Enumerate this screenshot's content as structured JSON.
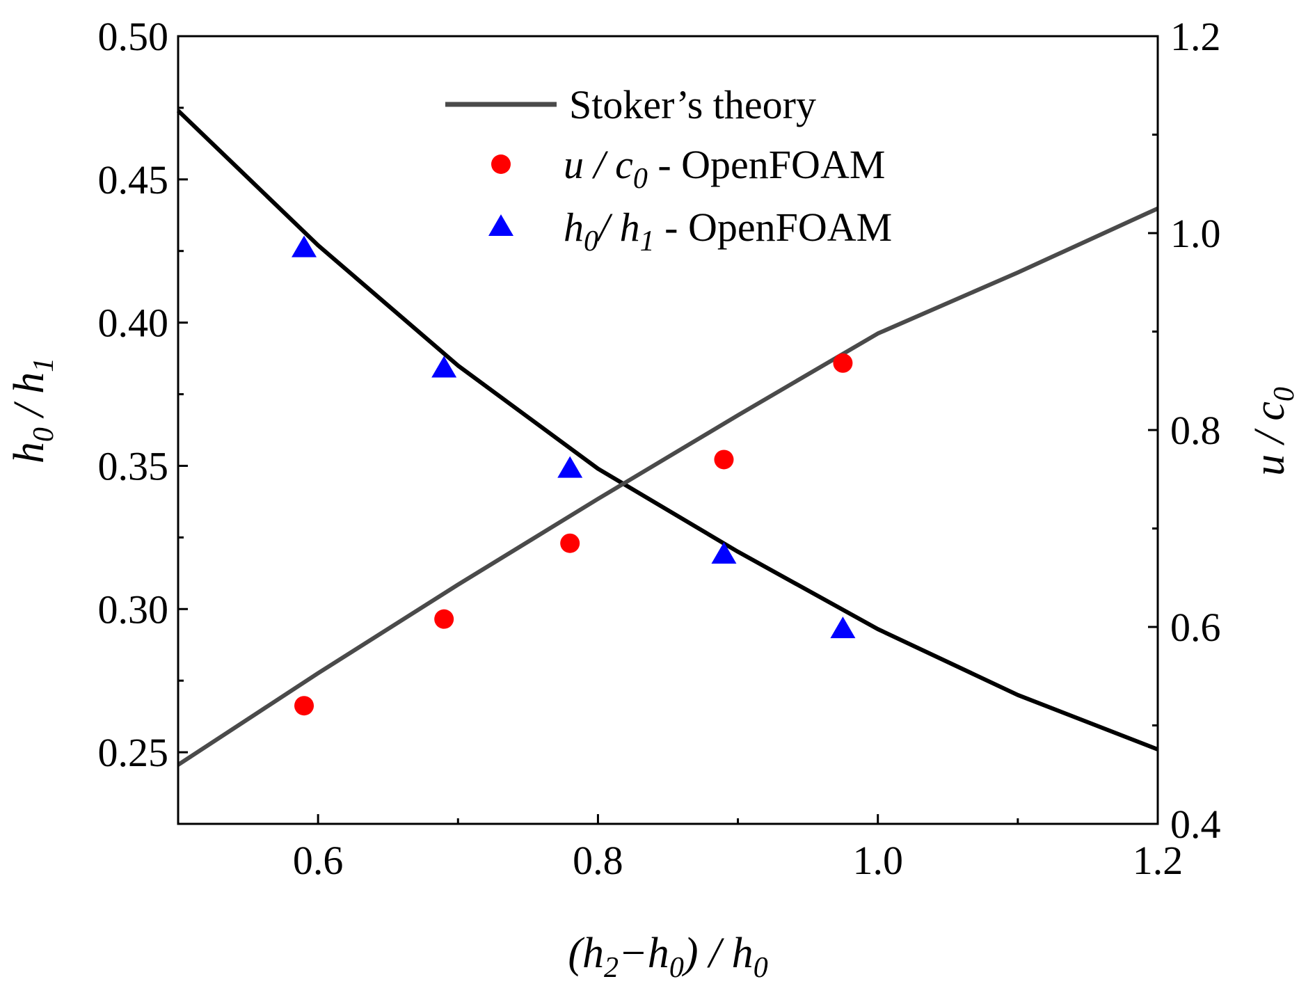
{
  "chart_data": {
    "type": "line",
    "title": "",
    "xlabel": "(h2−h0) / h0",
    "ylabel_left": "h0 / h1",
    "ylabel_right": "u / c0",
    "xlim": [
      0.5,
      1.2
    ],
    "ylim_left": [
      0.225,
      0.5
    ],
    "ylim_right": [
      0.4,
      1.2
    ],
    "x_ticks": [
      0.6,
      0.8,
      1.0,
      1.2
    ],
    "x_tick_labels": [
      "0.6",
      "0.8",
      "1.0",
      "1.2"
    ],
    "y_left_ticks": [
      0.25,
      0.3,
      0.35,
      0.4,
      0.45,
      0.5
    ],
    "y_left_tick_labels": [
      "0.25",
      "0.30",
      "0.35",
      "0.40",
      "0.45",
      "0.50"
    ],
    "y_right_ticks": [
      0.4,
      0.6,
      0.8,
      1.0,
      1.2
    ],
    "y_right_tick_labels": [
      "0.4",
      "0.6",
      "0.8",
      "1.0",
      "1.2"
    ],
    "grid": false,
    "legend_position": "top-right",
    "series": [
      {
        "name": "Stoker's theory",
        "role": "theory-h0h1",
        "axis": "left",
        "style": "line",
        "color": "#000000",
        "x": [
          0.5,
          0.6,
          0.7,
          0.8,
          0.9,
          1.0,
          1.1,
          1.2
        ],
        "y": [
          0.474,
          0.427,
          0.385,
          0.349,
          0.32,
          0.293,
          0.27,
          0.251
        ]
      },
      {
        "name": "Stoker's theory",
        "role": "theory-uc0",
        "axis": "right",
        "style": "line",
        "color": "#4a4a4a",
        "x": [
          0.5,
          0.6,
          0.7,
          0.8,
          0.9,
          1.0,
          1.1,
          1.2
        ],
        "y": [
          0.46,
          0.553,
          0.643,
          0.73,
          0.815,
          0.898,
          0.96,
          1.025
        ]
      },
      {
        "name": "u / c0 - OpenFOAM",
        "axis": "right",
        "style": "marker-circle",
        "color": "#ff0000",
        "x": [
          0.59,
          0.69,
          0.78,
          0.89,
          0.975
        ],
        "y": [
          0.52,
          0.608,
          0.685,
          0.77,
          0.868
        ]
      },
      {
        "name": "h0/ h1 - OpenFOAM",
        "axis": "left",
        "style": "marker-triangle",
        "color": "#0000ff",
        "x": [
          0.59,
          0.69,
          0.78,
          0.89,
          0.975
        ],
        "y": [
          0.426,
          0.384,
          0.349,
          0.319,
          0.293
        ]
      }
    ],
    "legend": {
      "theory": "Stoker’s theory",
      "uc0_a": "u / c",
      "uc0_sub": "0",
      "uc0_b": " - OpenFOAM",
      "h_a": "h",
      "h_sub1": "0",
      "h_b": "/ h",
      "h_sub2": "1",
      "h_c": " - OpenFOAM"
    },
    "labels": {
      "ylabel_left_a": "h",
      "ylabel_left_sub1": "0",
      "ylabel_left_b": " / h",
      "ylabel_left_sub2": "1",
      "ylabel_right_a": "u / c",
      "ylabel_right_sub": "0",
      "xlabel_a": "(h",
      "xlabel_sub1": "2",
      "xlabel_b": "−h",
      "xlabel_sub2": "0",
      "xlabel_c": ") / h",
      "xlabel_sub3": "0"
    }
  }
}
